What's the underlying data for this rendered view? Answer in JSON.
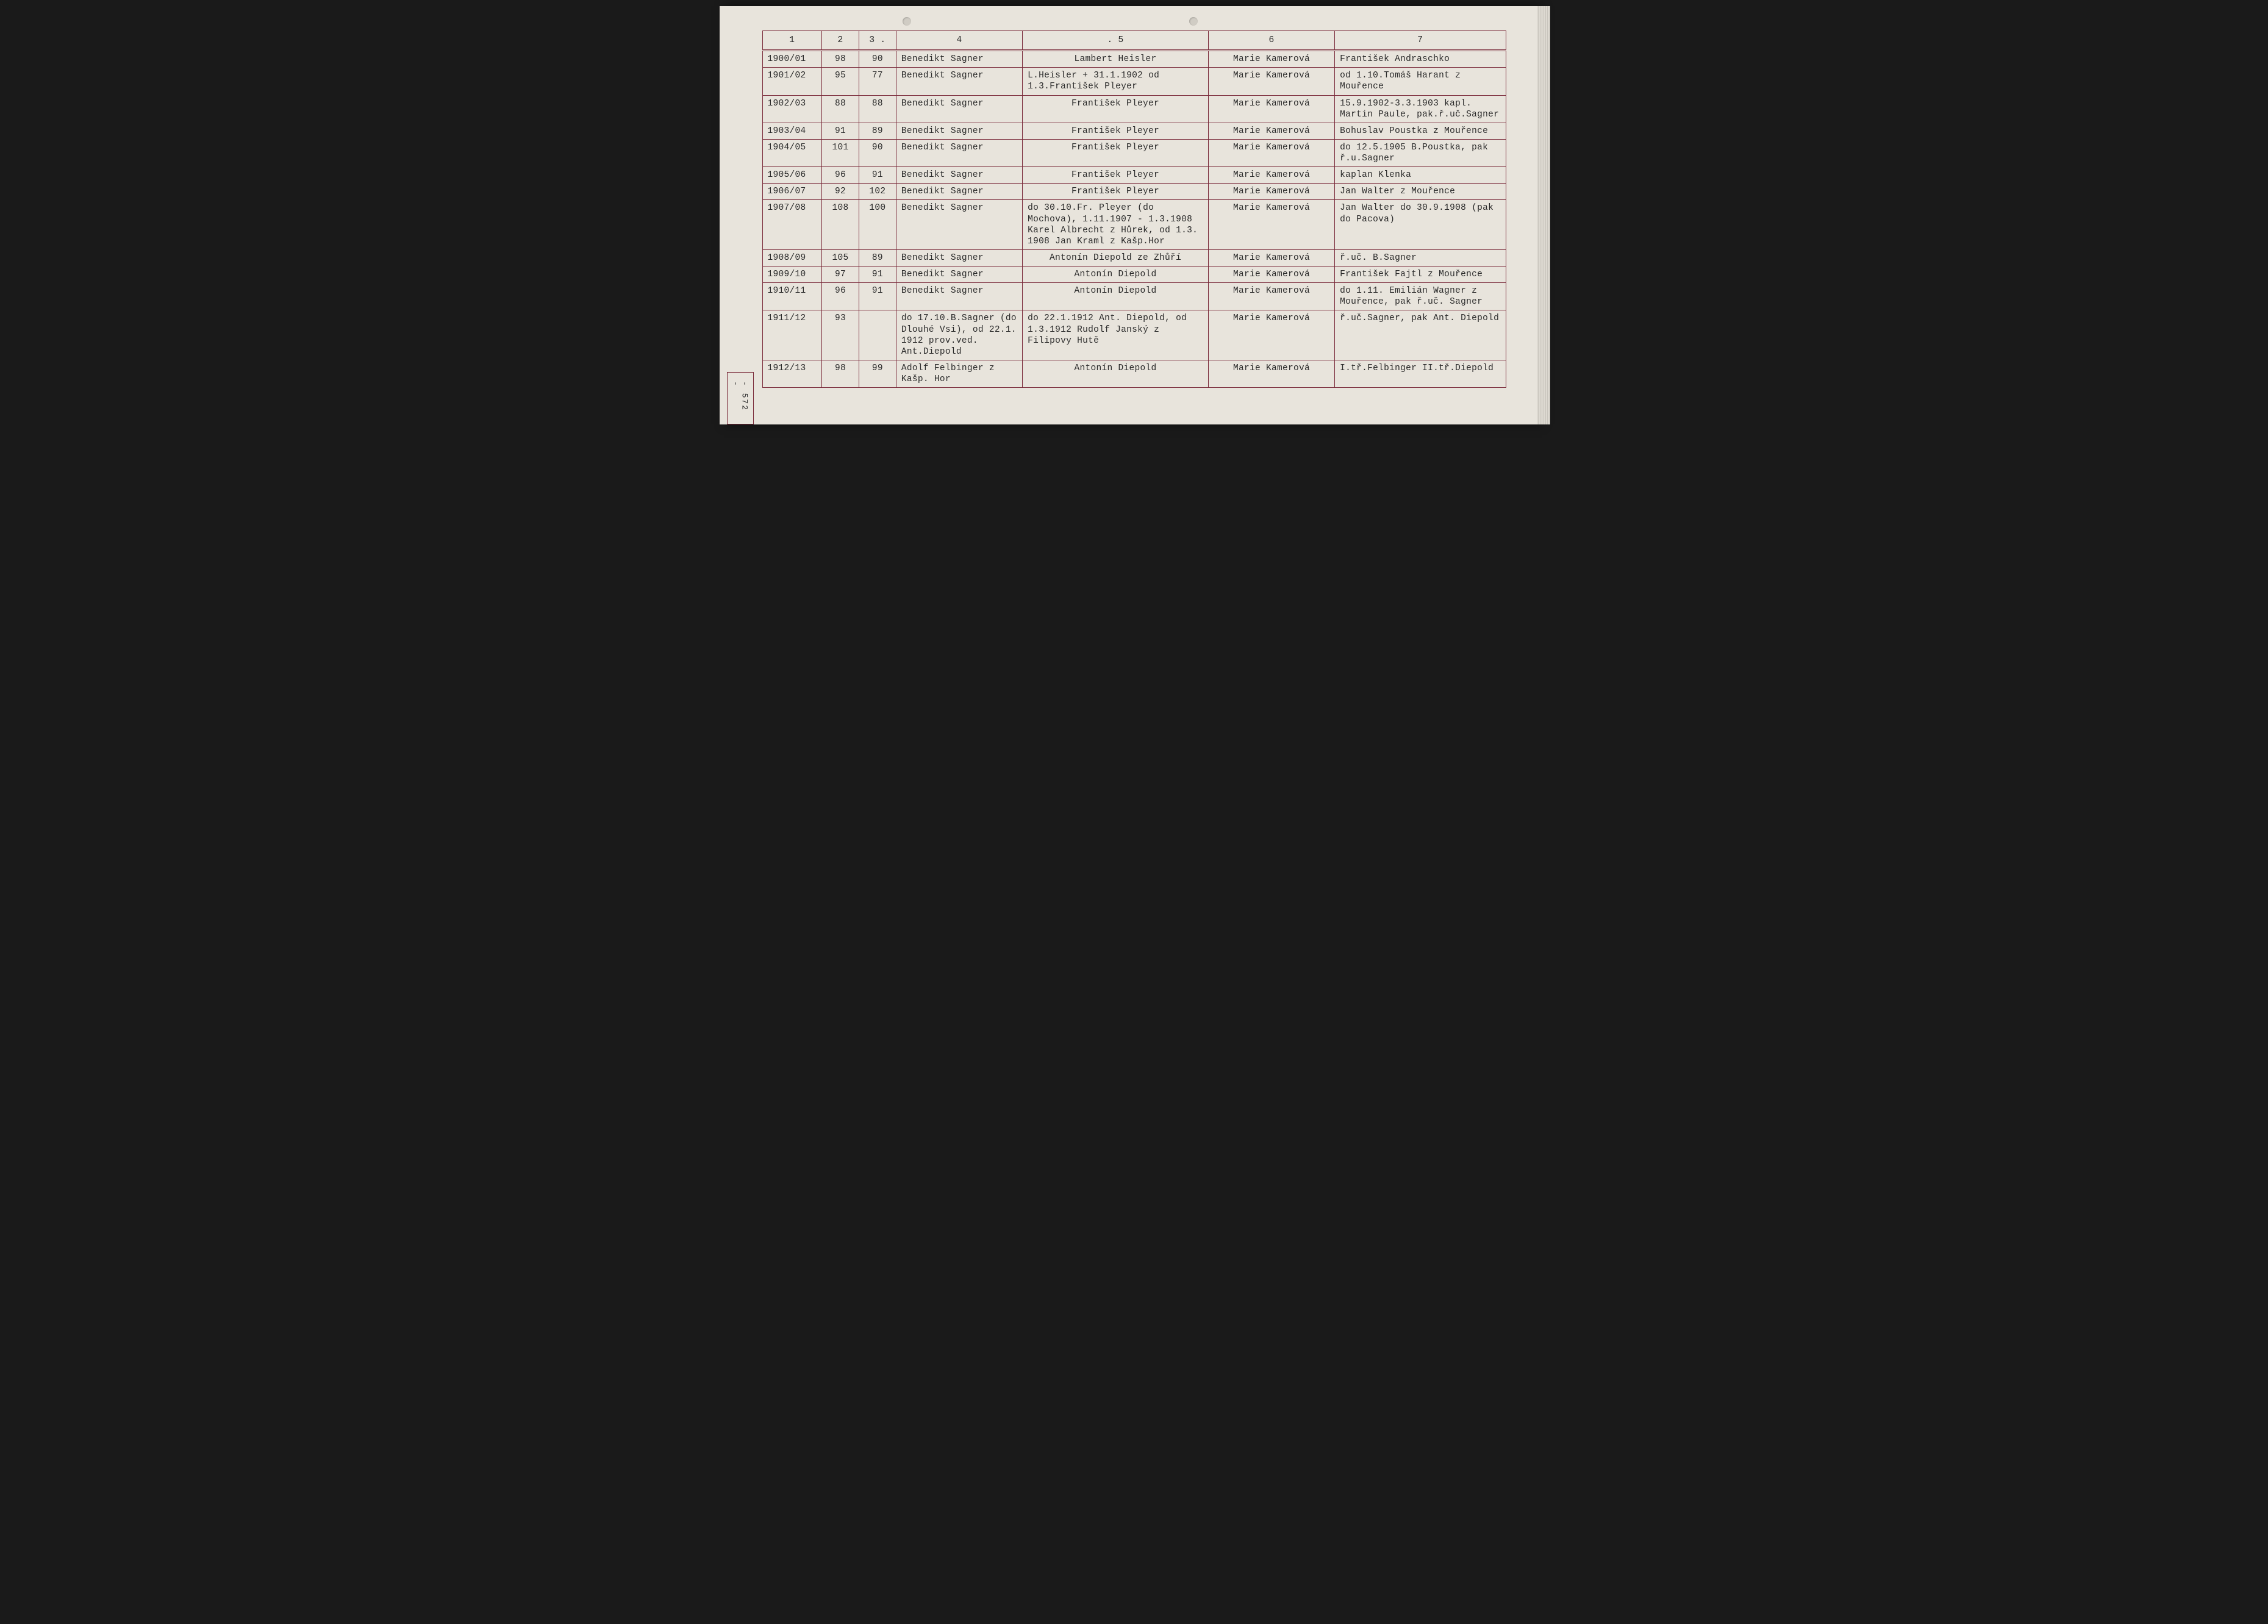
{
  "side_label": "- 572 -",
  "headers": [
    "1",
    "2",
    "3 .",
    "4",
    ". 5",
    "6",
    "7"
  ],
  "rows": [
    {
      "c1": "1900/01",
      "c2": "98",
      "c3": "90",
      "c4": "Benedikt Sagner",
      "c5": "Lambert Heisler",
      "c6": "Marie Kamerová",
      "c7": "František Andraschko"
    },
    {
      "c1": "1901/02",
      "c2": "95",
      "c3": "77",
      "c4": "Benedikt Sagner",
      "c5": "L.Heisler + 31.1.1902 od 1.3.František Pleyer",
      "c6": "Marie Kamerová",
      "c7": "od 1.10.Tomáš Harant z Mouřence"
    },
    {
      "c1": "1902/03",
      "c2": "88",
      "c3": "88",
      "c4": "Benedikt Sagner",
      "c5": "František Pleyer",
      "c6": "Marie Kamerová",
      "c7": "15.9.1902-3.3.1903 kapl. Martin Paule, pak.ř.uč.Sagner"
    },
    {
      "c1": "1903/04",
      "c2": "91",
      "c3": "89",
      "c4": "Benedikt Sagner",
      "c5": "František Pleyer",
      "c6": "Marie Kamerová",
      "c7": "Bohuslav Poustka z Mouřence"
    },
    {
      "c1": "1904/05",
      "c2": "101",
      "c3": "90",
      "c4": "Benedikt Sagner",
      "c5": "František Pleyer",
      "c6": "Marie Kamerová",
      "c7": "do 12.5.1905 B.Poustka, pak ř.u.Sagner"
    },
    {
      "c1": "1905/06",
      "c2": "96",
      "c3": "91",
      "c4": "Benedikt Sagner",
      "c5": "František Pleyer",
      "c6": "Marie Kamerová",
      "c7": "kaplan Klenka"
    },
    {
      "c1": "1906/07",
      "c2": "92",
      "c3": "102",
      "c4": "Benedikt Sagner",
      "c5": "František Pleyer",
      "c6": "Marie Kamerová",
      "c7": "Jan Walter z Mouřence"
    },
    {
      "c1": "1907/08",
      "c2": "108",
      "c3": "100",
      "c4": "Benedikt Sagner",
      "c5": "do 30.10.Fr. Pleyer (do Mochova), 1.11.1907 - 1.3.1908 Karel Albrecht z Hůrek, od 1.3. 1908 Jan Kraml z Kašp.Hor",
      "c6": "Marie Kamerová",
      "c7": "Jan Walter do 30.9.1908 (pak do Pacova)"
    },
    {
      "c1": "1908/09",
      "c2": "105",
      "c3": "89",
      "c4": "Benedikt Sagner",
      "c5": "Antonín Diepold ze Zhůří",
      "c6": "Marie Kamerová",
      "c7": "ř.uč. B.Sagner"
    },
    {
      "c1": "1909/10",
      "c2": "97",
      "c3": "91",
      "c4": "Benedikt Sagner",
      "c5": "Antonín Diepold",
      "c6": "Marie Kamerová",
      "c7": "František Fajtl z Mouřence"
    },
    {
      "c1": "1910/11",
      "c2": "96",
      "c3": "91",
      "c4": "Benedikt Sagner",
      "c5": "Antonín Diepold",
      "c6": "Marie Kamerová",
      "c7": "do 1.11. Emilián Wagner z Mouřence, pak ř.uč. Sagner"
    },
    {
      "c1": "1911/12",
      "c2": "93",
      "c3": "",
      "c4": "do 17.10.B.Sagner (do Dlouhé Vsi), od 22.1. 1912 prov.ved. Ant.Diepold",
      "c5": "do 22.1.1912 Ant. Diepold, od 1.3.1912 Rudolf Janský z Filipovy Hutě",
      "c6": "Marie Kamerová",
      "c7": "ř.uč.Sagner, pak Ant. Diepold"
    },
    {
      "c1": "1912/13",
      "c2": "98",
      "c3": "99",
      "c4": "Adolf Felbinger z Kašp. Hor",
      "c5": "Antonín Diepold",
      "c6": "Marie Kamerová",
      "c7": "I.tř.Felbinger II.tř.Diepold"
    }
  ],
  "colors": {
    "border": "#7a2a3a",
    "paper": "#e8e4dc",
    "text": "#2a2a2a"
  }
}
